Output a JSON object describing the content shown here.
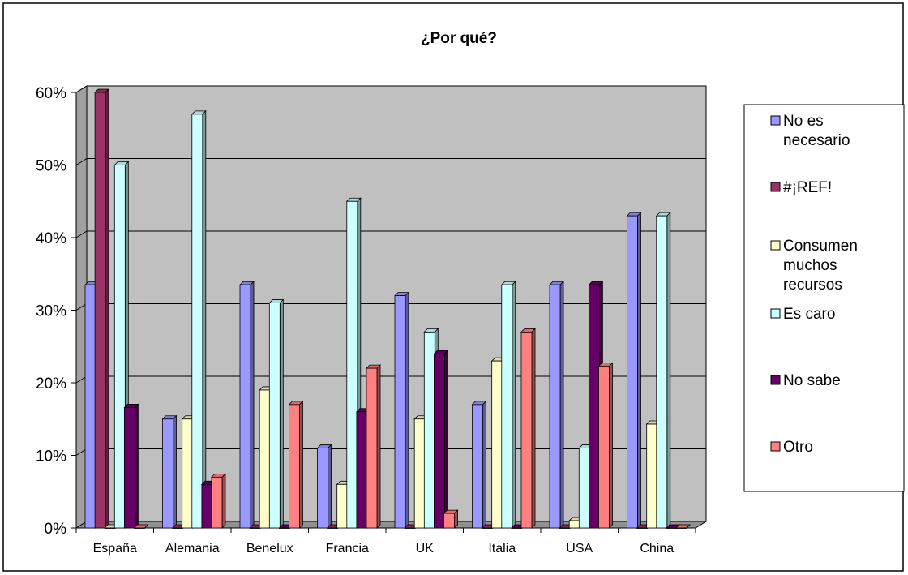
{
  "chart_data": {
    "type": "bar",
    "title": "¿Por qué?",
    "categories": [
      "España",
      "Alemania",
      "Benelux",
      "Francia",
      "UK",
      "Italia",
      "USA",
      "China"
    ],
    "y_ticks": [
      "0%",
      "10%",
      "20%",
      "30%",
      "40%",
      "50%",
      "60%"
    ],
    "ylim": [
      0,
      60
    ],
    "y_unit": "%",
    "grid": true,
    "legend_position": "right",
    "series": [
      {
        "name": "No es necesario",
        "legend_lines": [
          "No es",
          "necesario"
        ],
        "color": "#9999FF",
        "values": [
          33.5,
          15,
          33.5,
          11,
          32,
          17,
          33.5,
          43
        ]
      },
      {
        "name": "#¡REF!",
        "legend_lines": [
          "#¡REF!"
        ],
        "color": "#993366",
        "values": [
          60,
          0,
          0,
          0,
          0,
          0,
          0,
          0
        ]
      },
      {
        "name": "Consumen muchos recursos",
        "legend_lines": [
          "Consumen",
          "muchos",
          "recursos"
        ],
        "color": "#FFFFCC",
        "values": [
          0,
          15,
          19,
          6,
          15,
          23,
          1,
          14.3
        ]
      },
      {
        "name": "Es caro",
        "legend_lines": [
          "Es caro"
        ],
        "color": "#CCFFFF",
        "values": [
          50,
          57,
          31,
          45,
          27,
          33.5,
          11,
          43
        ]
      },
      {
        "name": "No sabe",
        "legend_lines": [
          "No sabe"
        ],
        "color": "#660066",
        "values": [
          16.6,
          6,
          0,
          16,
          24,
          0,
          33.5,
          0
        ]
      },
      {
        "name": "Otro",
        "legend_lines": [
          "Otro"
        ],
        "color": "#FF8080",
        "values": [
          0,
          7,
          17,
          22,
          2,
          27,
          22.3,
          0
        ]
      }
    ]
  }
}
